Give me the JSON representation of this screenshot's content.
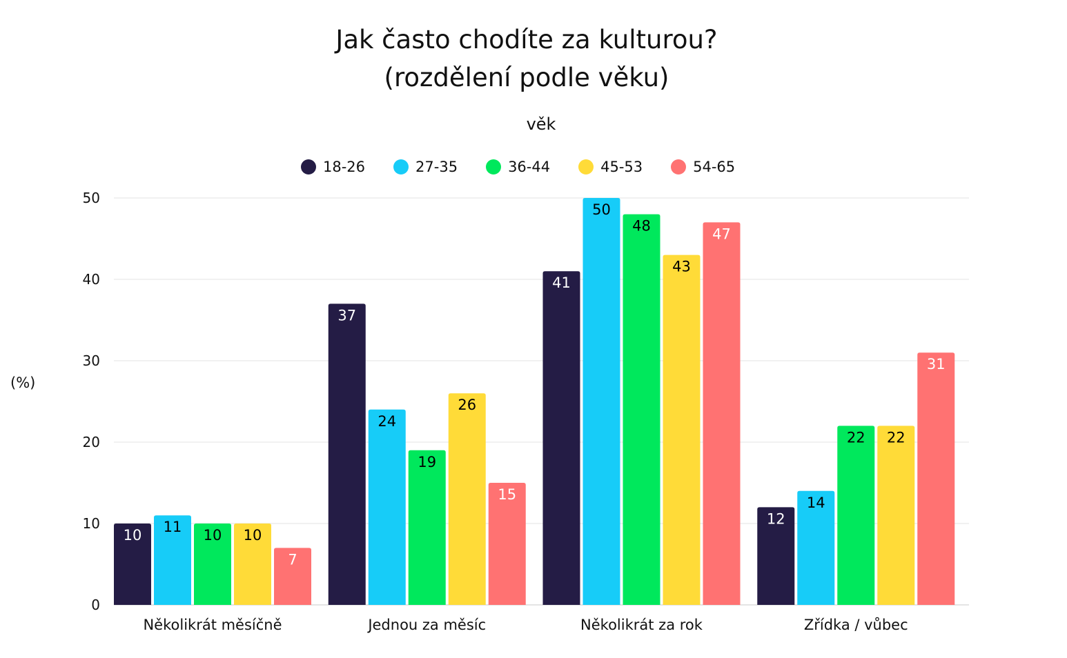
{
  "chart_data": {
    "type": "bar",
    "title": [
      "Jak často chodíte za kulturou?",
      "(rozdělení podle věku)"
    ],
    "legend_title": "věk",
    "legend_placement": "top",
    "ylabel": "(%)",
    "xlabel": "",
    "ylim": [
      0,
      50
    ],
    "yticks": [
      0,
      10,
      20,
      30,
      40,
      50
    ],
    "grid": true,
    "categories": [
      "Několikrát měsíčně",
      "Jednou za měsíc",
      "Několikrát za rok",
      "Zřídka / vůbec"
    ],
    "series": [
      {
        "name": "18-26",
        "color": "#241c45",
        "label_color": "#ffffff",
        "values": [
          10,
          37,
          41,
          12
        ]
      },
      {
        "name": "27-35",
        "color": "#17ccf8",
        "label_color": "#000000",
        "values": [
          11,
          24,
          50,
          14
        ]
      },
      {
        "name": "36-44",
        "color": "#00e85c",
        "label_color": "#000000",
        "values": [
          10,
          19,
          48,
          22
        ]
      },
      {
        "name": "45-53",
        "color": "#ffdb38",
        "label_color": "#000000",
        "values": [
          10,
          26,
          43,
          22
        ]
      },
      {
        "name": "54-65",
        "color": "#ff7272",
        "label_color": "#ffffff",
        "values": [
          7,
          15,
          47,
          31
        ]
      }
    ]
  }
}
